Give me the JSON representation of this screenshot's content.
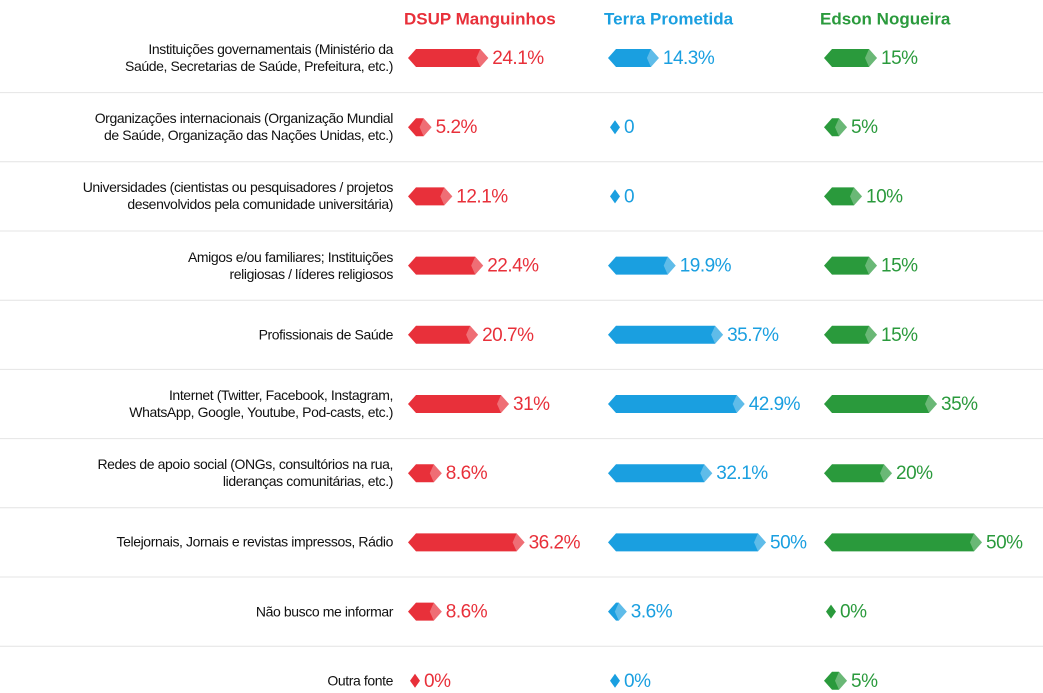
{
  "chart_data": {
    "type": "bar",
    "categories": [
      "Instituições governamentais (Ministério da\nSaúde, Secretarias de Saúde, Prefeitura, etc.)",
      "Organizações internacionais (Organização Mundial\nde Saúde, Organização das Nações Unidas, etc.)",
      "Universidades (cientistas ou pesquisadores / projetos\ndesenvolvidos pela comunidade universitária)",
      "Amigos e/ou familiares; Instituições\nreligiosas / líderes religiosos",
      "Profissionais de Saúde",
      "Internet (Twitter, Facebook, Instagram,\nWhatsApp, Google, Youtube, Pod-casts, etc.)",
      "Redes de apoio social (ONGs, consultórios na rua,\nlideranças comunitárias, etc.)",
      "Telejornais, Jornais e revistas impressos, Rádio",
      "Não busco me informar",
      "Outra fonte"
    ],
    "series": [
      {
        "name": "DSUP Manguinhos",
        "color": "#e8303a",
        "values": [
          24.1,
          5.2,
          12.1,
          22.4,
          20.7,
          31,
          8.6,
          36.2,
          8.6,
          0
        ],
        "value_labels": [
          "24.1%",
          "5.2%",
          "12.1%",
          "22.4%",
          "20.7%",
          "31%",
          "8.6%",
          "36.2%",
          "8.6%",
          "0%"
        ]
      },
      {
        "name": "Terra Prometida",
        "color": "#1a9fe0",
        "values": [
          14.3,
          0,
          0,
          19.9,
          35.7,
          42.9,
          32.1,
          50,
          3.6,
          0
        ],
        "value_labels": [
          "14.3%",
          "0",
          "0",
          "19.9%",
          "35.7%",
          "42.9%",
          "32.1%",
          "50%",
          "3.6%",
          "0%"
        ]
      },
      {
        "name": "Edson Nogueira",
        "color": "#2a9a3c",
        "values": [
          15,
          5,
          10,
          15,
          15,
          35,
          20,
          50,
          0,
          5
        ],
        "value_labels": [
          "15%",
          "5%",
          "10%",
          "15%",
          "15%",
          "35%",
          "20%",
          "50%",
          "0%",
          "5%"
        ]
      }
    ]
  }
}
